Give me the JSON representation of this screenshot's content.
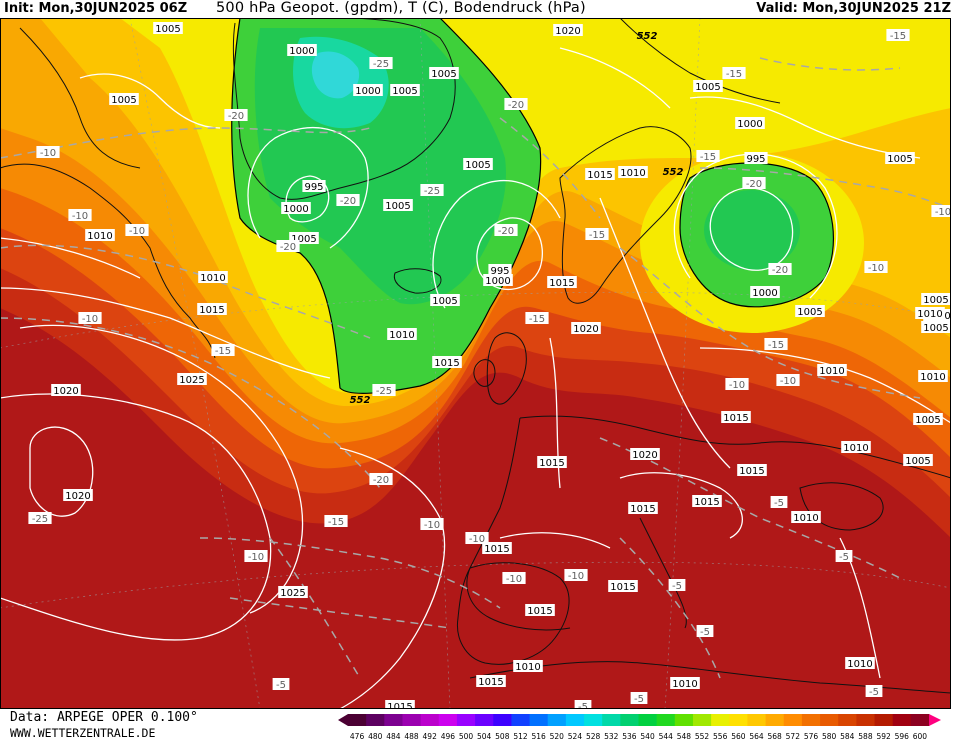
{
  "header": {
    "init": "Init: Mon,30JUN2025 06Z",
    "title": "500 hPa Geopot. (gpdm), T (C), Bodendruck (hPa)",
    "valid": "Valid: Mon,30JUN2025 21Z"
  },
  "footer": {
    "source": "Data: ARPEGE OPER 0.100°",
    "site": "WWW.WETTERZENTRALE.DE"
  },
  "colorbar": {
    "ticks": [
      "476",
      "480",
      "484",
      "488",
      "492",
      "496",
      "500",
      "504",
      "508",
      "512",
      "516",
      "520",
      "524",
      "528",
      "532",
      "536",
      "540",
      "544",
      "548",
      "552",
      "556",
      "560",
      "564",
      "568",
      "572",
      "576",
      "580",
      "584",
      "588",
      "592",
      "596",
      "600"
    ],
    "colors": [
      "#4b0033",
      "#5c0060",
      "#7c0090",
      "#9b00b0",
      "#bb00cc",
      "#cc00ee",
      "#9900ff",
      "#6a00ff",
      "#3c00ff",
      "#1040ff",
      "#0070ff",
      "#00a0ff",
      "#00c8ff",
      "#00e0e0",
      "#00d8a8",
      "#00d070",
      "#00d040",
      "#20d820",
      "#60e000",
      "#a0e800",
      "#e8f000",
      "#ffe000",
      "#ffc800",
      "#ffaa00",
      "#ff8c00",
      "#f27000",
      "#e85a00",
      "#d84400",
      "#c83000",
      "#b41a00",
      "#a00010",
      "#8c0020"
    ]
  },
  "map": {
    "labels_pressure": [
      {
        "t": "1005"
      },
      {
        "t": "1020"
      },
      {
        "t": "1005"
      },
      {
        "t": "1000"
      },
      {
        "t": "1005"
      },
      {
        "t": "1000"
      },
      {
        "t": "1005"
      },
      {
        "t": "995"
      },
      {
        "t": "1000"
      },
      {
        "t": "1005"
      },
      {
        "t": "1005"
      },
      {
        "t": "1005"
      },
      {
        "t": "995"
      },
      {
        "t": "1000"
      },
      {
        "t": "1010"
      },
      {
        "t": "1010"
      },
      {
        "t": "1015"
      },
      {
        "t": "1005"
      },
      {
        "t": "1010"
      },
      {
        "t": "1015"
      },
      {
        "t": "1020"
      },
      {
        "t": "1025"
      },
      {
        "t": "1020"
      },
      {
        "t": "1020"
      },
      {
        "t": "1025"
      },
      {
        "t": "1015"
      },
      {
        "t": "1015"
      },
      {
        "t": "1010"
      },
      {
        "t": "995"
      },
      {
        "t": "1000"
      },
      {
        "t": "1000"
      },
      {
        "t": "1005"
      },
      {
        "t": "1005"
      },
      {
        "t": "1010"
      },
      {
        "t": "1015"
      },
      {
        "t": "1015"
      },
      {
        "t": "1010"
      },
      {
        "t": "1020"
      },
      {
        "t": "1015"
      },
      {
        "t": "1015"
      },
      {
        "t": "1015"
      },
      {
        "t": "1015"
      },
      {
        "t": "1010"
      },
      {
        "t": "1010"
      },
      {
        "t": "1005"
      },
      {
        "t": "1005"
      },
      {
        "t": "1005"
      },
      {
        "t": "1010"
      },
      {
        "t": "1005"
      },
      {
        "t": "1005"
      },
      {
        "t": "1015"
      },
      {
        "t": "1015"
      },
      {
        "t": "1010"
      },
      {
        "t": "1015"
      },
      {
        "t": "1010"
      },
      {
        "t": "1010"
      },
      {
        "t": "1010"
      },
      {
        "t": "1015"
      }
    ],
    "labels_temp": [
      {
        "t": "-20"
      },
      {
        "t": "-25"
      },
      {
        "t": "-10"
      },
      {
        "t": "-10"
      },
      {
        "t": "-10"
      },
      {
        "t": "-20"
      },
      {
        "t": "-25"
      },
      {
        "t": "-20"
      },
      {
        "t": "-25"
      },
      {
        "t": "-20"
      },
      {
        "t": "-20"
      },
      {
        "t": "-15"
      },
      {
        "t": "-15"
      },
      {
        "t": "-15"
      },
      {
        "t": "-20"
      },
      {
        "t": "-20"
      },
      {
        "t": "-15"
      },
      {
        "t": "-10"
      },
      {
        "t": "-15"
      },
      {
        "t": "-15"
      },
      {
        "t": "-10"
      },
      {
        "t": "-10"
      },
      {
        "t": "-15"
      },
      {
        "t": "-10"
      },
      {
        "t": "-20"
      },
      {
        "t": "-15"
      },
      {
        "t": "-10"
      },
      {
        "t": "-10"
      },
      {
        "t": "-10"
      },
      {
        "t": "-10"
      },
      {
        "t": "-10"
      },
      {
        "t": "-5"
      },
      {
        "t": "-5"
      },
      {
        "t": "-5"
      },
      {
        "t": "-5"
      },
      {
        "t": "-5"
      },
      {
        "t": "-5"
      },
      {
        "t": "-5"
      },
      {
        "t": "-25"
      },
      {
        "t": "-10"
      },
      {
        "t": "-5"
      }
    ],
    "labels_geopot": [
      {
        "t": "552"
      },
      {
        "t": "552"
      },
      {
        "t": "552"
      }
    ]
  }
}
